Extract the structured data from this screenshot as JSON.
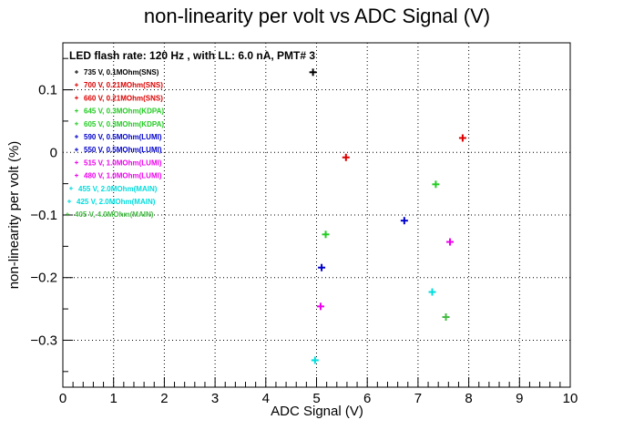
{
  "chart_data": {
    "type": "scatter",
    "title": "non-linearity per volt vs ADC Signal (V)",
    "xlabel": "ADC Signal (V)",
    "ylabel": "non-linearity per volt (%)",
    "annotation": "LED flash rate: 120 Hz , with LL: 6.0 nA, PMT# 3",
    "xlim": [
      0,
      10
    ],
    "ylim": [
      -0.375,
      0.175
    ],
    "x_ticks": [
      0,
      1,
      2,
      3,
      4,
      5,
      6,
      7,
      8,
      9,
      10
    ],
    "x_tick_labels": [
      "0",
      "1",
      "2",
      "3",
      "4",
      "5",
      "6",
      "7",
      "8",
      "9",
      "10"
    ],
    "y_ticks": [
      -0.3,
      -0.2,
      -0.1,
      0,
      0.1
    ],
    "y_tick_labels": [
      "−0.3",
      "−0.2",
      "−0.1",
      "0",
      "0.1"
    ],
    "grid": true,
    "legend_position": "top-left",
    "series": [
      {
        "name": "735 V, 0.1MOhm(SNS)",
        "color": "#000000",
        "points": [
          [
            4.93,
            0.128
          ]
        ]
      },
      {
        "name": "700 V, 0.21MOhm(SNS)",
        "color": "#dd0000",
        "points": [
          [
            7.88,
            0.023
          ]
        ]
      },
      {
        "name": "660 V, 0.21MOhm(SNS)",
        "color": "#dd0000",
        "points": [
          [
            5.58,
            -0.008
          ]
        ]
      },
      {
        "name": "645 V, 0.3MOhm(KDPA)",
        "color": "#22cc22",
        "points": [
          [
            7.35,
            -0.051
          ]
        ]
      },
      {
        "name": "605 V, 0.3MOhm(KDPA)",
        "color": "#22cc22",
        "points": [
          [
            5.18,
            -0.131
          ]
        ]
      },
      {
        "name": "590 V, 0.5MOhm(LUMI)",
        "color": "#0000cc",
        "points": [
          [
            6.73,
            -0.109
          ]
        ]
      },
      {
        "name": "550 V, 0.5MOhm(LUMI)",
        "color": "#0000cc",
        "points": [
          [
            5.1,
            -0.184
          ]
        ]
      },
      {
        "name": "515 V, 1.0MOhm(LUMI)",
        "color": "#ee00ee",
        "points": [
          [
            7.63,
            -0.143
          ]
        ]
      },
      {
        "name": "480 V, 1.0MOhm(LUMI)",
        "color": "#ee00ee",
        "points": [
          [
            5.08,
            -0.246
          ]
        ]
      },
      {
        "name": "455 V, 2.0MOhm(MAIN)",
        "color": "#00dddd",
        "points": [
          [
            7.28,
            -0.223
          ]
        ]
      },
      {
        "name": "425 V, 2.0MOhm(MAIN)",
        "color": "#00dddd",
        "points": [
          [
            4.97,
            -0.332
          ]
        ]
      },
      {
        "name": "405 V, 4.0MOhm(MAIN)",
        "color": "#44bb44",
        "points": [
          [
            7.55,
            -0.263
          ]
        ]
      }
    ]
  }
}
